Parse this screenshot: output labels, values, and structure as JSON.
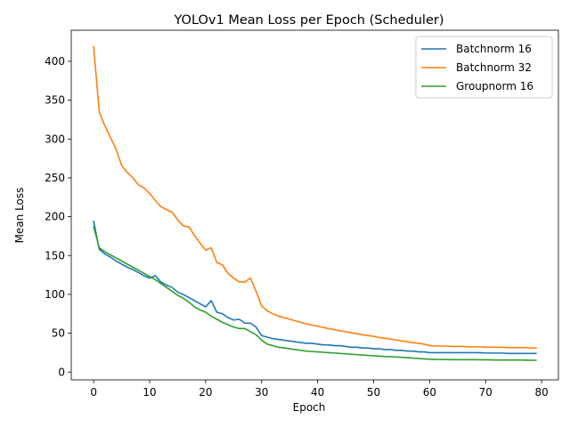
{
  "chart_data": {
    "type": "line",
    "title": "YOLOv1 Mean Loss per Epoch (Scheduler)",
    "xlabel": "Epoch",
    "ylabel": "Mean Loss",
    "xlim": [
      -4,
      83
    ],
    "ylim": [
      -10,
      440
    ],
    "xticks": [
      0,
      10,
      20,
      30,
      40,
      50,
      60,
      70,
      80
    ],
    "yticks": [
      0,
      50,
      100,
      150,
      200,
      250,
      300,
      350,
      400
    ],
    "grid": false,
    "legend_position": "top-right",
    "series": [
      {
        "name": "Batchnorm 16",
        "color": "#1f77b4",
        "values": [
          194,
          158,
          152,
          148,
          143,
          139,
          135,
          132,
          128,
          124,
          121,
          124,
          116,
          112,
          109,
          103,
          100,
          96,
          92,
          88,
          84,
          92,
          77,
          75,
          70,
          67,
          68,
          63,
          63,
          58,
          47,
          45,
          43,
          42,
          41,
          40,
          39,
          38,
          37,
          37,
          36,
          35,
          35,
          34,
          34,
          33,
          32,
          32,
          31,
          31,
          30,
          30,
          29,
          29,
          28,
          28,
          27,
          27,
          26,
          26,
          25,
          25,
          25,
          25,
          25,
          25,
          25,
          25,
          25,
          25,
          24.5,
          24.5,
          24.5,
          24.5,
          24,
          24,
          24,
          24,
          24,
          24
        ]
      },
      {
        "name": "Batchnorm 32",
        "color": "#ff7f0e",
        "values": [
          419,
          335,
          317,
          302,
          287,
          266,
          257,
          250,
          241,
          237,
          230,
          221,
          213,
          209,
          206,
          196,
          188,
          187,
          176,
          166,
          157,
          160,
          141,
          138,
          127,
          121,
          116,
          116,
          121,
          104,
          85,
          79,
          75,
          72,
          70,
          68,
          66,
          64,
          62,
          60.5,
          59,
          57.5,
          56,
          54.5,
          53,
          52,
          50.5,
          49.5,
          48,
          47,
          46,
          44.5,
          43.5,
          42.5,
          41.5,
          40,
          39,
          38,
          37,
          36,
          34,
          33.5,
          33.5,
          33.5,
          33,
          33,
          33,
          32.5,
          32.5,
          32.5,
          32,
          32,
          32,
          32,
          31.5,
          31.5,
          31.5,
          31.5,
          31,
          31
        ]
      },
      {
        "name": "Groupnorm 16",
        "color": "#2ca02c",
        "values": [
          187,
          160,
          155,
          151,
          147,
          143,
          139,
          135,
          131,
          127,
          123,
          119,
          114,
          109,
          104,
          99,
          95,
          90,
          84,
          80,
          77,
          72,
          68,
          64,
          61,
          58,
          56,
          56,
          52,
          48,
          41,
          36,
          34,
          32,
          31,
          30,
          29,
          28,
          27,
          26.5,
          26,
          25.5,
          25,
          24.5,
          24,
          23.5,
          23,
          22.5,
          22,
          21.5,
          21,
          20.5,
          20,
          19.8,
          19.5,
          19,
          18.5,
          18,
          17.5,
          17,
          16.5,
          16.3,
          16.2,
          16.1,
          16,
          16,
          16,
          16,
          16,
          15.8,
          15.8,
          15.7,
          15.6,
          15.6,
          15.5,
          15.5,
          15.5,
          15.4,
          15.3,
          15.2
        ]
      }
    ]
  }
}
